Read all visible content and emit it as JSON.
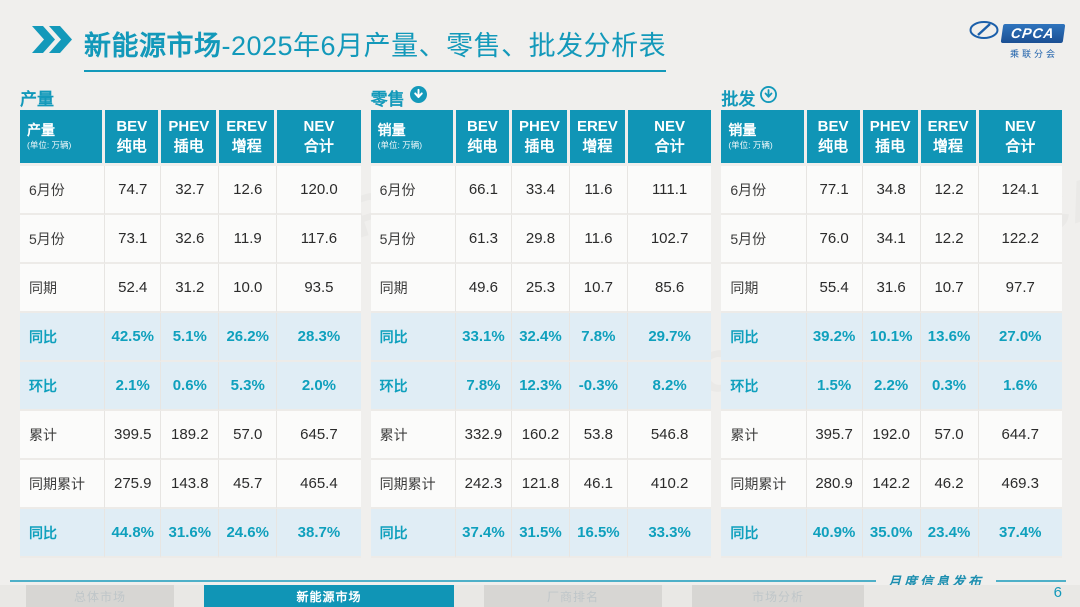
{
  "header": {
    "title_bold": "新能源市场",
    "title_rest": "-2025年6月产量、零售、批发分析表",
    "accent_color": "#1095b6"
  },
  "logo": {
    "text": "CPCA",
    "subtext": "乘联分会"
  },
  "sections": [
    {
      "key": "production",
      "label": "产量",
      "arrow": "none",
      "row_header": "产量",
      "unit": "(单位: 万辆)"
    },
    {
      "key": "retail",
      "label": "零售",
      "arrow": "filled-circle-down",
      "row_header": "销量",
      "unit": "(单位: 万辆)"
    },
    {
      "key": "wholesale",
      "label": "批发",
      "arrow": "outline-circle-down",
      "row_header": "销量",
      "unit": "(单位: 万辆)"
    }
  ],
  "chart_data": [
    {
      "type": "table",
      "title": "产量",
      "unit": "万辆",
      "columns": [
        {
          "en": "BEV",
          "cn": "纯电"
        },
        {
          "en": "PHEV",
          "cn": "插电"
        },
        {
          "en": "EREV",
          "cn": "增程"
        },
        {
          "en": "NEV",
          "cn": "合计"
        }
      ],
      "rows": [
        {
          "label": "6月份",
          "values": [
            "74.7",
            "32.7",
            "12.6",
            "120.0"
          ],
          "highlight": false
        },
        {
          "label": "5月份",
          "values": [
            "73.1",
            "32.6",
            "11.9",
            "117.6"
          ],
          "highlight": false
        },
        {
          "label": "同期",
          "values": [
            "52.4",
            "31.2",
            "10.0",
            "93.5"
          ],
          "highlight": false
        },
        {
          "label": "同比",
          "values": [
            "42.5%",
            "5.1%",
            "26.2%",
            "28.3%"
          ],
          "highlight": true
        },
        {
          "label": "环比",
          "values": [
            "2.1%",
            "0.6%",
            "5.3%",
            "2.0%"
          ],
          "highlight": true
        },
        {
          "label": "累计",
          "values": [
            "399.5",
            "189.2",
            "57.0",
            "645.7"
          ],
          "highlight": false
        },
        {
          "label": "同期累计",
          "values": [
            "275.9",
            "143.8",
            "45.7",
            "465.4"
          ],
          "highlight": false
        },
        {
          "label": "同比",
          "values": [
            "44.8%",
            "31.6%",
            "24.6%",
            "38.7%"
          ],
          "highlight": true
        }
      ]
    },
    {
      "type": "table",
      "title": "零售",
      "unit": "万辆",
      "columns": [
        {
          "en": "BEV",
          "cn": "纯电"
        },
        {
          "en": "PHEV",
          "cn": "插电"
        },
        {
          "en": "EREV",
          "cn": "增程"
        },
        {
          "en": "NEV",
          "cn": "合计"
        }
      ],
      "rows": [
        {
          "label": "6月份",
          "values": [
            "66.1",
            "33.4",
            "11.6",
            "111.1"
          ],
          "highlight": false
        },
        {
          "label": "5月份",
          "values": [
            "61.3",
            "29.8",
            "11.6",
            "102.7"
          ],
          "highlight": false
        },
        {
          "label": "同期",
          "values": [
            "49.6",
            "25.3",
            "10.7",
            "85.6"
          ],
          "highlight": false
        },
        {
          "label": "同比",
          "values": [
            "33.1%",
            "32.4%",
            "7.8%",
            "29.7%"
          ],
          "highlight": true
        },
        {
          "label": "环比",
          "values": [
            "7.8%",
            "12.3%",
            "-0.3%",
            "8.2%"
          ],
          "highlight": true
        },
        {
          "label": "累计",
          "values": [
            "332.9",
            "160.2",
            "53.8",
            "546.8"
          ],
          "highlight": false
        },
        {
          "label": "同期累计",
          "values": [
            "242.3",
            "121.8",
            "46.1",
            "410.2"
          ],
          "highlight": false
        },
        {
          "label": "同比",
          "values": [
            "37.4%",
            "31.5%",
            "16.5%",
            "33.3%"
          ],
          "highlight": true
        }
      ]
    },
    {
      "type": "table",
      "title": "批发",
      "unit": "万辆",
      "columns": [
        {
          "en": "BEV",
          "cn": "纯电"
        },
        {
          "en": "PHEV",
          "cn": "插电"
        },
        {
          "en": "EREV",
          "cn": "增程"
        },
        {
          "en": "NEV",
          "cn": "合计"
        }
      ],
      "rows": [
        {
          "label": "6月份",
          "values": [
            "77.1",
            "34.8",
            "12.2",
            "124.1"
          ],
          "highlight": false
        },
        {
          "label": "5月份",
          "values": [
            "76.0",
            "34.1",
            "12.2",
            "122.2"
          ],
          "highlight": false
        },
        {
          "label": "同期",
          "values": [
            "55.4",
            "31.6",
            "10.7",
            "97.7"
          ],
          "highlight": false
        },
        {
          "label": "同比",
          "values": [
            "39.2%",
            "10.1%",
            "13.6%",
            "27.0%"
          ],
          "highlight": true
        },
        {
          "label": "环比",
          "values": [
            "1.5%",
            "2.2%",
            "0.3%",
            "1.6%"
          ],
          "highlight": true
        },
        {
          "label": "累计",
          "values": [
            "395.7",
            "192.0",
            "57.0",
            "644.7"
          ],
          "highlight": false
        },
        {
          "label": "同期累计",
          "values": [
            "280.9",
            "142.2",
            "46.2",
            "469.3"
          ],
          "highlight": false
        },
        {
          "label": "同比",
          "values": [
            "40.9%",
            "35.0%",
            "23.4%",
            "37.4%"
          ],
          "highlight": true
        }
      ]
    }
  ],
  "footer": {
    "note": "月度信息发布",
    "page_number": "6",
    "tabs": [
      {
        "label": "总体市场",
        "active": false
      },
      {
        "label": "新能源市场",
        "active": true
      },
      {
        "label": "厂商排名",
        "active": false
      },
      {
        "label": "市场分析",
        "active": false
      }
    ]
  }
}
